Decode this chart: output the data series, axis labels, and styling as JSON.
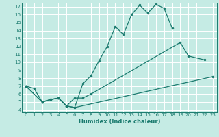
{
  "xlabel": "Humidex (Indice chaleur)",
  "bg_color": "#c5ebe4",
  "grid_color": "#ffffff",
  "line_color": "#1a7a6e",
  "xlim": [
    -0.5,
    23.5
  ],
  "ylim": [
    3.7,
    17.5
  ],
  "xticks": [
    0,
    1,
    2,
    3,
    4,
    5,
    6,
    7,
    8,
    9,
    10,
    11,
    12,
    13,
    14,
    15,
    16,
    17,
    18,
    19,
    20,
    21,
    22,
    23
  ],
  "yticks": [
    4,
    5,
    6,
    7,
    8,
    9,
    10,
    11,
    12,
    13,
    14,
    15,
    16,
    17
  ],
  "line1": [
    [
      0,
      7.0
    ],
    [
      1,
      6.7
    ],
    [
      2,
      5.0
    ],
    [
      3,
      5.3
    ],
    [
      4,
      5.5
    ],
    [
      5,
      4.5
    ],
    [
      6,
      4.3
    ],
    [
      7,
      7.3
    ],
    [
      8,
      8.3
    ],
    [
      9,
      10.2
    ],
    [
      10,
      12.0
    ],
    [
      11,
      14.5
    ],
    [
      12,
      13.5
    ],
    [
      13,
      16.0
    ],
    [
      14,
      17.2
    ],
    [
      15,
      16.2
    ],
    [
      16,
      17.3
    ],
    [
      17,
      16.8
    ],
    [
      18,
      14.3
    ]
  ],
  "line2": [
    [
      0,
      7.0
    ],
    [
      2,
      5.0
    ],
    [
      3,
      5.3
    ],
    [
      4,
      5.5
    ],
    [
      5,
      4.5
    ],
    [
      6,
      5.5
    ],
    [
      7,
      5.5
    ],
    [
      8,
      6.0
    ],
    [
      19,
      12.5
    ],
    [
      20,
      10.8
    ],
    [
      22,
      10.3
    ]
  ],
  "line3": [
    [
      0,
      7.0
    ],
    [
      2,
      5.0
    ],
    [
      3,
      5.3
    ],
    [
      4,
      5.5
    ],
    [
      5,
      4.5
    ],
    [
      6,
      4.3
    ],
    [
      23,
      8.2
    ]
  ]
}
